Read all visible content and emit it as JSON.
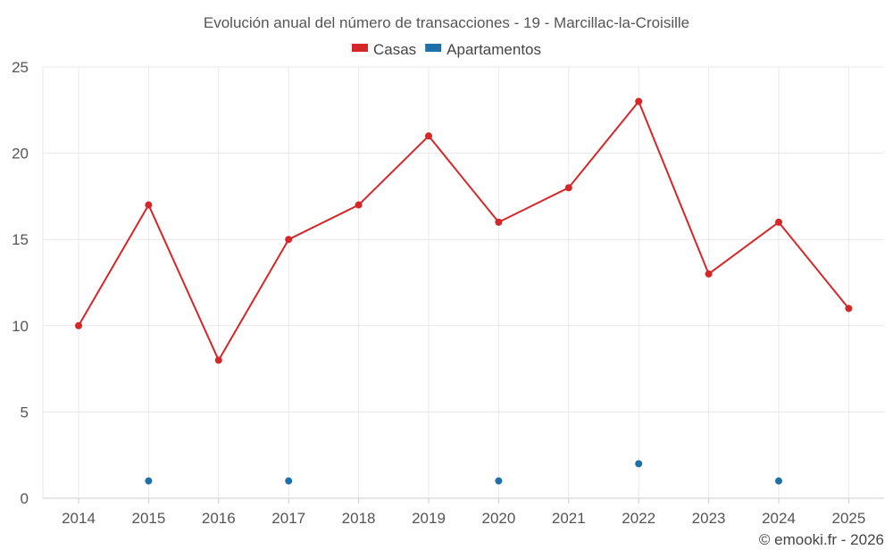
{
  "chart_data": {
    "type": "line",
    "title": "Evolución anual del número de transacciones - 19 - Marcillac-la-Croisille",
    "categories": [
      "2014",
      "2015",
      "2016",
      "2017",
      "2018",
      "2019",
      "2020",
      "2021",
      "2022",
      "2023",
      "2024",
      "2025"
    ],
    "yticks": [
      "0",
      "5",
      "10",
      "15",
      "20",
      "25"
    ],
    "ylim": [
      0,
      25
    ],
    "grid": true,
    "legend_position": "top-center",
    "series": [
      {
        "name": "Casas",
        "color": "#d62728",
        "style": "line+markers",
        "values": [
          10,
          17,
          8,
          15,
          17,
          21,
          16,
          18,
          23,
          13,
          16,
          11
        ]
      },
      {
        "name": "Apartamentos",
        "color": "#1f6fa8",
        "style": "markers",
        "values": [
          null,
          1,
          null,
          1,
          null,
          null,
          1,
          null,
          2,
          null,
          1,
          null
        ]
      }
    ],
    "credit": "© emooki.fr - 2026"
  }
}
